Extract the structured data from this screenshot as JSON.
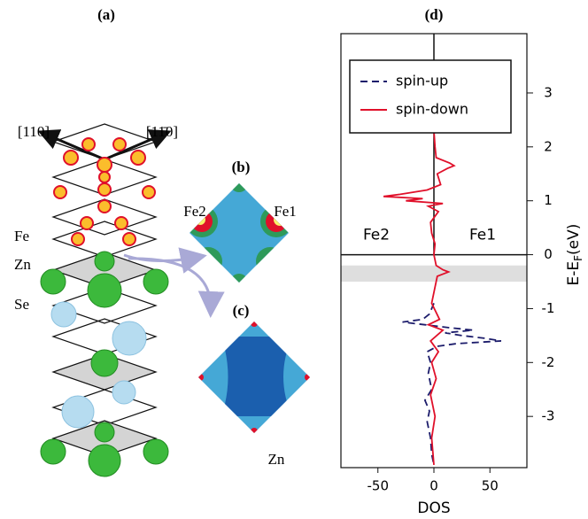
{
  "panels": {
    "a": "(a)",
    "b": "(b)",
    "c": "(c)",
    "d": "(d)"
  },
  "schematic": {
    "dir_left": "[110]",
    "dir_right": "[11̄0]",
    "layer_fe": "Fe",
    "layer_zn": "Zn",
    "layer_se": "Se"
  },
  "map_b": {
    "left": "Fe2",
    "right": "Fe1"
  },
  "map_c": {
    "bottom": "Zn"
  },
  "chart_data": {
    "type": "line",
    "orientation": "horizontal",
    "xlabel": "DOS",
    "ylabel": {
      "main": "E-E",
      "sub": "F",
      "unit": "(eV)"
    },
    "region_left": "Fe2",
    "region_right": "Fe1",
    "xlim": [
      -83,
      83
    ],
    "xticks": [
      -50,
      0,
      50
    ],
    "ylim": [
      -3.95,
      4.1
    ],
    "yticks": [
      -3,
      -2,
      -1,
      0,
      1,
      2,
      3
    ],
    "highlight_band": [
      -0.5,
      -0.2
    ],
    "legend": "top-left",
    "series": [
      {
        "name": "spin-up",
        "color": "#1c1c6b",
        "style": "dashed",
        "energy": [
          -0.9,
          -1.1,
          -1.2,
          -1.25,
          -1.3,
          -1.35,
          -1.4,
          -1.45,
          -1.5,
          -1.55,
          -1.6,
          -1.65,
          -1.7,
          -1.8,
          -2.0,
          -2.2,
          -2.5,
          -2.7,
          -2.9,
          -3.1,
          -3.4,
          -3.7,
          -3.9
        ],
        "values": [
          0,
          -4,
          -10,
          -28,
          -8,
          12,
          35,
          10,
          25,
          45,
          60,
          20,
          3,
          -6,
          -3,
          -5,
          -2,
          -8,
          -4,
          -6,
          -3,
          -2,
          0
        ]
      },
      {
        "name": "spin-down",
        "color": "#e0102a",
        "style": "solid",
        "energy": [
          2.3,
          2.0,
          1.8,
          1.7,
          1.65,
          1.6,
          1.5,
          1.3,
          1.2,
          1.12,
          1.08,
          1.04,
          1.0,
          0.95,
          0.9,
          0.8,
          0.6,
          0.4,
          0.2,
          0.0,
          -0.2,
          -0.28,
          -0.32,
          -0.4,
          -0.6,
          -0.9,
          -1.2,
          -1.3,
          -1.4,
          -1.6,
          -1.8,
          -2.0,
          -2.3,
          -2.6,
          -3.0,
          -3.4,
          -3.9
        ],
        "values": [
          0,
          1,
          2,
          14,
          18,
          12,
          3,
          6,
          -6,
          -30,
          -45,
          -10,
          -25,
          8,
          -5,
          4,
          -3,
          -2,
          1,
          0,
          2,
          8,
          13,
          3,
          1,
          -2,
          5,
          -5,
          8,
          -3,
          4,
          -2,
          2,
          -3,
          1,
          -2,
          0
        ]
      }
    ]
  }
}
